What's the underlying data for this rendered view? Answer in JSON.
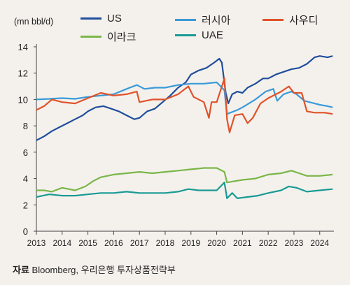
{
  "chart_data": {
    "type": "line",
    "unit_label": "(mn bbl/d)",
    "ylim": [
      0,
      14
    ],
    "y_ticks": [
      0,
      2,
      4,
      6,
      8,
      10,
      12,
      14
    ],
    "x_range": [
      2013,
      2024.55
    ],
    "x_ticks": [
      "2013",
      "2014",
      "2015",
      "2016",
      "2017",
      "2018",
      "2019",
      "2020",
      "2021",
      "2022",
      "2023",
      "2024"
    ],
    "grid": false,
    "legend_position": "top",
    "series": [
      {
        "name": "US",
        "color": "#1f4e9c",
        "points": [
          [
            2013,
            6.9
          ],
          [
            2013.3,
            7.2
          ],
          [
            2013.6,
            7.6
          ],
          [
            2013.9,
            7.9
          ],
          [
            2014.2,
            8.2
          ],
          [
            2014.5,
            8.5
          ],
          [
            2014.8,
            8.8
          ],
          [
            2015.0,
            9.1
          ],
          [
            2015.3,
            9.4
          ],
          [
            2015.6,
            9.5
          ],
          [
            2015.9,
            9.3
          ],
          [
            2016.2,
            9.1
          ],
          [
            2016.5,
            8.8
          ],
          [
            2016.8,
            8.5
          ],
          [
            2017.0,
            8.6
          ],
          [
            2017.3,
            9.1
          ],
          [
            2017.6,
            9.3
          ],
          [
            2017.9,
            9.8
          ],
          [
            2018.2,
            10.3
          ],
          [
            2018.5,
            10.9
          ],
          [
            2018.8,
            11.3
          ],
          [
            2019.0,
            11.9
          ],
          [
            2019.3,
            12.2
          ],
          [
            2019.6,
            12.4
          ],
          [
            2019.9,
            12.8
          ],
          [
            2020.1,
            13.1
          ],
          [
            2020.2,
            12.8
          ],
          [
            2020.35,
            10.5
          ],
          [
            2020.45,
            9.7
          ],
          [
            2020.6,
            10.4
          ],
          [
            2020.8,
            10.6
          ],
          [
            2021.0,
            10.5
          ],
          [
            2021.2,
            10.9
          ],
          [
            2021.5,
            11.2
          ],
          [
            2021.8,
            11.6
          ],
          [
            2022.0,
            11.6
          ],
          [
            2022.3,
            11.9
          ],
          [
            2022.6,
            12.1
          ],
          [
            2022.9,
            12.3
          ],
          [
            2023.2,
            12.4
          ],
          [
            2023.5,
            12.7
          ],
          [
            2023.8,
            13.2
          ],
          [
            2024.0,
            13.3
          ],
          [
            2024.3,
            13.2
          ],
          [
            2024.5,
            13.3
          ]
        ]
      },
      {
        "name": "러시아",
        "color": "#3a9ad9",
        "points": [
          [
            2013,
            10.0
          ],
          [
            2013.5,
            10.05
          ],
          [
            2014,
            10.1
          ],
          [
            2014.5,
            10.05
          ],
          [
            2015,
            10.2
          ],
          [
            2015.5,
            10.3
          ],
          [
            2016,
            10.4
          ],
          [
            2016.5,
            10.8
          ],
          [
            2016.9,
            11.1
          ],
          [
            2017.2,
            10.8
          ],
          [
            2017.6,
            10.9
          ],
          [
            2018,
            10.9
          ],
          [
            2018.5,
            11.1
          ],
          [
            2019,
            11.2
          ],
          [
            2019.5,
            11.2
          ],
          [
            2020.0,
            11.3
          ],
          [
            2020.3,
            10.7
          ],
          [
            2020.4,
            8.9
          ],
          [
            2020.8,
            9.2
          ],
          [
            2021.0,
            9.4
          ],
          [
            2021.5,
            10.0
          ],
          [
            2021.9,
            10.6
          ],
          [
            2022.2,
            10.8
          ],
          [
            2022.35,
            9.9
          ],
          [
            2022.6,
            10.4
          ],
          [
            2022.9,
            10.6
          ],
          [
            2023.1,
            10.4
          ],
          [
            2023.4,
            9.9
          ],
          [
            2023.8,
            9.7
          ],
          [
            2024.0,
            9.6
          ],
          [
            2024.3,
            9.5
          ],
          [
            2024.5,
            9.4
          ]
        ]
      },
      {
        "name": "사우디",
        "color": "#e0522a",
        "points": [
          [
            2013,
            9.2
          ],
          [
            2013.3,
            9.5
          ],
          [
            2013.6,
            10.0
          ],
          [
            2014,
            9.8
          ],
          [
            2014.5,
            9.7
          ],
          [
            2015,
            10.1
          ],
          [
            2015.5,
            10.5
          ],
          [
            2016,
            10.3
          ],
          [
            2016.5,
            10.4
          ],
          [
            2016.9,
            10.6
          ],
          [
            2017.0,
            9.8
          ],
          [
            2017.5,
            10.0
          ],
          [
            2018,
            10.0
          ],
          [
            2018.5,
            10.4
          ],
          [
            2018.9,
            11.0
          ],
          [
            2019.1,
            10.2
          ],
          [
            2019.5,
            9.8
          ],
          [
            2019.7,
            8.6
          ],
          [
            2019.8,
            9.8
          ],
          [
            2020.0,
            9.8
          ],
          [
            2020.3,
            11.6
          ],
          [
            2020.4,
            8.5
          ],
          [
            2020.5,
            7.5
          ],
          [
            2020.7,
            8.8
          ],
          [
            2021.0,
            8.9
          ],
          [
            2021.2,
            8.2
          ],
          [
            2021.4,
            8.6
          ],
          [
            2021.7,
            9.7
          ],
          [
            2022.0,
            10.1
          ],
          [
            2022.5,
            10.6
          ],
          [
            2022.8,
            11.0
          ],
          [
            2023.0,
            10.5
          ],
          [
            2023.3,
            10.5
          ],
          [
            2023.5,
            9.1
          ],
          [
            2023.8,
            9.0
          ],
          [
            2024.2,
            9.0
          ],
          [
            2024.5,
            8.9
          ]
        ]
      },
      {
        "name": "이라크",
        "color": "#7ab648",
        "points": [
          [
            2013,
            3.1
          ],
          [
            2013.3,
            3.1
          ],
          [
            2013.6,
            3.0
          ],
          [
            2014,
            3.3
          ],
          [
            2014.5,
            3.1
          ],
          [
            2014.9,
            3.4
          ],
          [
            2015.2,
            3.8
          ],
          [
            2015.5,
            4.1
          ],
          [
            2016,
            4.3
          ],
          [
            2016.5,
            4.4
          ],
          [
            2017,
            4.5
          ],
          [
            2017.5,
            4.4
          ],
          [
            2018,
            4.5
          ],
          [
            2018.5,
            4.6
          ],
          [
            2019,
            4.7
          ],
          [
            2019.5,
            4.8
          ],
          [
            2020.0,
            4.8
          ],
          [
            2020.3,
            4.5
          ],
          [
            2020.4,
            3.7
          ],
          [
            2020.7,
            3.8
          ],
          [
            2021.0,
            3.9
          ],
          [
            2021.5,
            4.0
          ],
          [
            2022,
            4.3
          ],
          [
            2022.5,
            4.4
          ],
          [
            2022.9,
            4.6
          ],
          [
            2023.2,
            4.4
          ],
          [
            2023.5,
            4.2
          ],
          [
            2024.0,
            4.2
          ],
          [
            2024.5,
            4.3
          ]
        ]
      },
      {
        "name": "UAE",
        "color": "#1a9a94",
        "points": [
          [
            2013,
            2.6
          ],
          [
            2013.5,
            2.8
          ],
          [
            2014,
            2.7
          ],
          [
            2014.5,
            2.7
          ],
          [
            2015,
            2.8
          ],
          [
            2015.5,
            2.9
          ],
          [
            2016,
            2.9
          ],
          [
            2016.5,
            3.0
          ],
          [
            2017,
            2.9
          ],
          [
            2017.5,
            2.9
          ],
          [
            2018,
            2.9
          ],
          [
            2018.5,
            3.0
          ],
          [
            2018.9,
            3.2
          ],
          [
            2019.3,
            3.1
          ],
          [
            2020.0,
            3.1
          ],
          [
            2020.3,
            3.7
          ],
          [
            2020.4,
            2.5
          ],
          [
            2020.6,
            2.9
          ],
          [
            2020.8,
            2.5
          ],
          [
            2021.2,
            2.6
          ],
          [
            2021.6,
            2.7
          ],
          [
            2022,
            2.9
          ],
          [
            2022.5,
            3.1
          ],
          [
            2022.8,
            3.4
          ],
          [
            2023.1,
            3.3
          ],
          [
            2023.5,
            3.0
          ],
          [
            2024.0,
            3.1
          ],
          [
            2024.5,
            3.2
          ]
        ]
      }
    ]
  },
  "source": {
    "label": "자료",
    "text": " Bloomberg, 우리은행 투자상품전략부"
  }
}
